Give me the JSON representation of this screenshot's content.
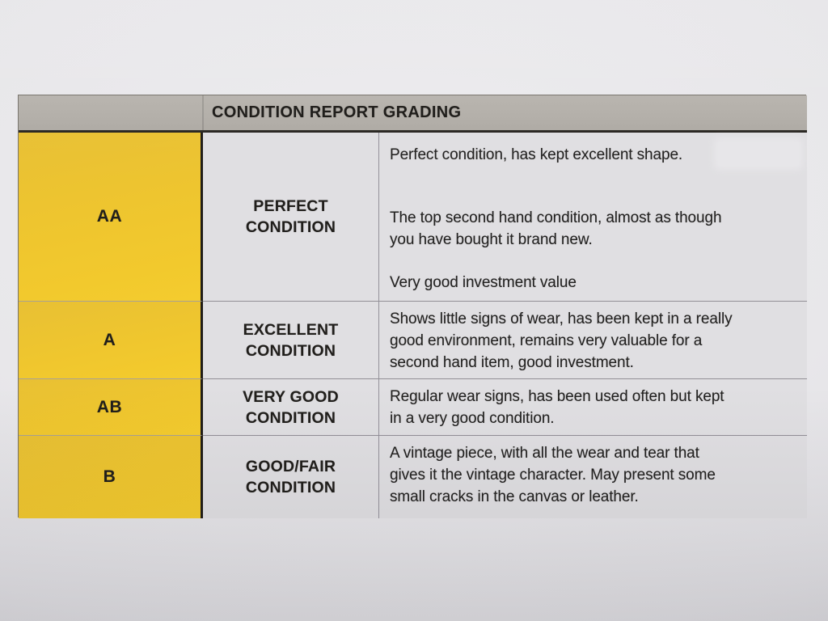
{
  "document": {
    "type": "photographed printed table",
    "colors": {
      "paper_bg": "#e8e7ea",
      "header_bg": "#b3afa9",
      "cell_bg": "#e0dfe2",
      "grade_cell_yellow": "#efc52f",
      "text": "#232220",
      "dark_border": "#26231f",
      "light_border": "#94919a"
    },
    "table": {
      "header": "CONDITION REPORT GRADING",
      "rows": [
        {
          "grade": "AA",
          "condition_lines": [
            "PERFECT",
            "CONDITION"
          ],
          "paragraphs": [
            [
              "Perfect condition, has kept excellent shape."
            ],
            [
              "The top second hand condition, almost as though",
              "you have bought it brand new."
            ],
            [
              "Very good investment value"
            ]
          ]
        },
        {
          "grade": "A",
          "condition_lines": [
            "EXCELLENT",
            "CONDITION"
          ],
          "paragraphs": [
            [
              "Shows little signs of wear, has been kept in a really",
              "good environment, remains very valuable for a",
              "second hand item, good investment."
            ]
          ]
        },
        {
          "grade": "AB",
          "condition_lines": [
            "VERY GOOD",
            "CONDITION"
          ],
          "paragraphs": [
            [
              "Regular wear signs, has been used often but kept",
              "in a very good condition."
            ]
          ]
        },
        {
          "grade": "B",
          "condition_lines": [
            "GOOD/FAIR",
            "CONDITION"
          ],
          "paragraphs": [
            [
              "A vintage piece, with all the wear and tear that",
              "gives it the vintage character. May present some",
              "small cracks in the canvas or leather."
            ]
          ]
        }
      ]
    }
  }
}
